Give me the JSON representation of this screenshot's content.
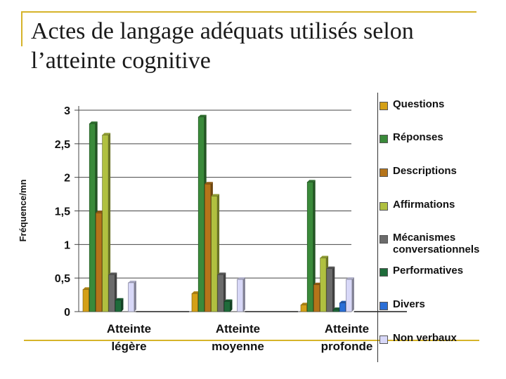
{
  "slide": {
    "title_line1": "Actes de langage adéquats utilisés selon",
    "title_line2": "l’atteinte cognitive"
  },
  "chart_data": {
    "type": "bar",
    "ylabel": "Fréquence/mn",
    "ylim": [
      0,
      3
    ],
    "yticks": [
      "0",
      "0,5",
      "1",
      "1,5",
      "2",
      "2,5",
      "3"
    ],
    "grid": true,
    "legend_position": "right",
    "categories": [
      {
        "line1": "Atteinte",
        "line2": "légère"
      },
      {
        "line1": "Atteinte",
        "line2": "moyenne"
      },
      {
        "line1": "Atteinte",
        "line2": "profonde"
      }
    ],
    "series": [
      {
        "name": "Questions",
        "color": "#d4a017",
        "values": [
          0.33,
          0.27,
          0.1
        ]
      },
      {
        "name": "Réponses",
        "color": "#3a8a3a",
        "values": [
          2.8,
          2.9,
          1.93
        ]
      },
      {
        "name": "Descriptions",
        "color": "#b5741a",
        "values": [
          1.47,
          1.9,
          0.4
        ]
      },
      {
        "name": "Affirmations",
        "color": "#b0c040",
        "values": [
          2.63,
          1.72,
          0.8
        ]
      },
      {
        "name": "Mécanismes conversationnels",
        "color": "#6b6b6b",
        "values": [
          0.55,
          0.55,
          0.64
        ]
      },
      {
        "name": "Performatives",
        "color": "#1e6b3a",
        "values": [
          0.17,
          0.15,
          0.03
        ]
      },
      {
        "name": "Divers",
        "color": "#2a6ed6",
        "values": [
          0.0,
          0.0,
          0.13
        ]
      },
      {
        "name": "Non verbaux",
        "color": "#d8d8f8",
        "values": [
          0.43,
          0.48,
          0.48
        ]
      }
    ]
  }
}
